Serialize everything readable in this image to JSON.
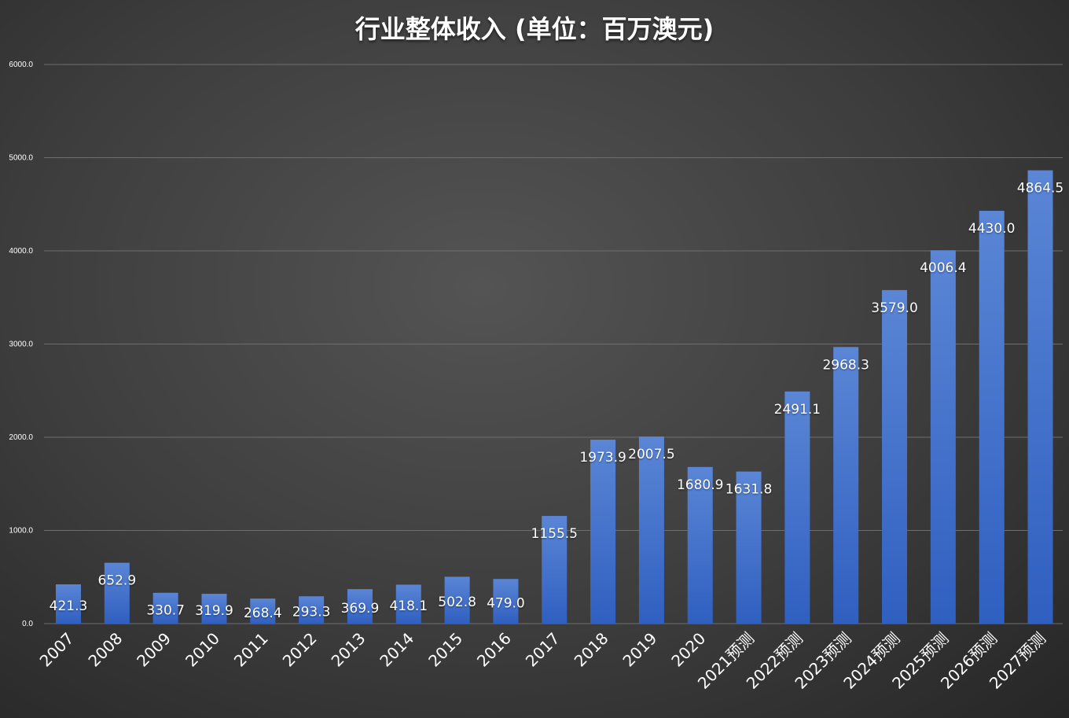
{
  "chart_data": {
    "type": "bar",
    "title": "行业整体收入 (单位：百万澳元)",
    "xlabel": "",
    "ylabel": "",
    "ylim": [
      0,
      6000
    ],
    "yticks": [
      "0.0",
      "1000.0",
      "2000.0",
      "3000.0",
      "4000.0",
      "5000.0",
      "6000.0"
    ],
    "grid": true,
    "legend": "none",
    "categories": [
      "2007",
      "2008",
      "2009",
      "2010",
      "2011",
      "2012",
      "2013",
      "2014",
      "2015",
      "2016",
      "2017",
      "2018",
      "2019",
      "2020",
      "2021预测",
      "2022预测",
      "2023预测",
      "2024预测",
      "2025预测",
      "2026预测",
      "2027预测"
    ],
    "values": [
      421.3,
      652.9,
      330.7,
      319.9,
      268.4,
      293.3,
      369.9,
      418.1,
      502.8,
      479.0,
      1155.5,
      1973.9,
      2007.5,
      1680.9,
      1631.8,
      2491.1,
      2968.3,
      3579.0,
      4006.4,
      4430.0,
      4864.5
    ],
    "data_labels": [
      "421.3",
      "652.9",
      "330.7",
      "319.9",
      "268.4",
      "293.3",
      "369.9",
      "418.1",
      "502.8",
      "479.0",
      "1155.5",
      "1973.9",
      "2007.5",
      "1680.9",
      "1631.8",
      "2491.1",
      "2968.3",
      "3579.0",
      "4006.4",
      "4430.0",
      "4864.5"
    ],
    "colors": {
      "bar_top": "#5b86d6",
      "bar_bottom": "#2f5fc0",
      "grid": "#6e6e6e",
      "text": "#ffffff"
    }
  }
}
